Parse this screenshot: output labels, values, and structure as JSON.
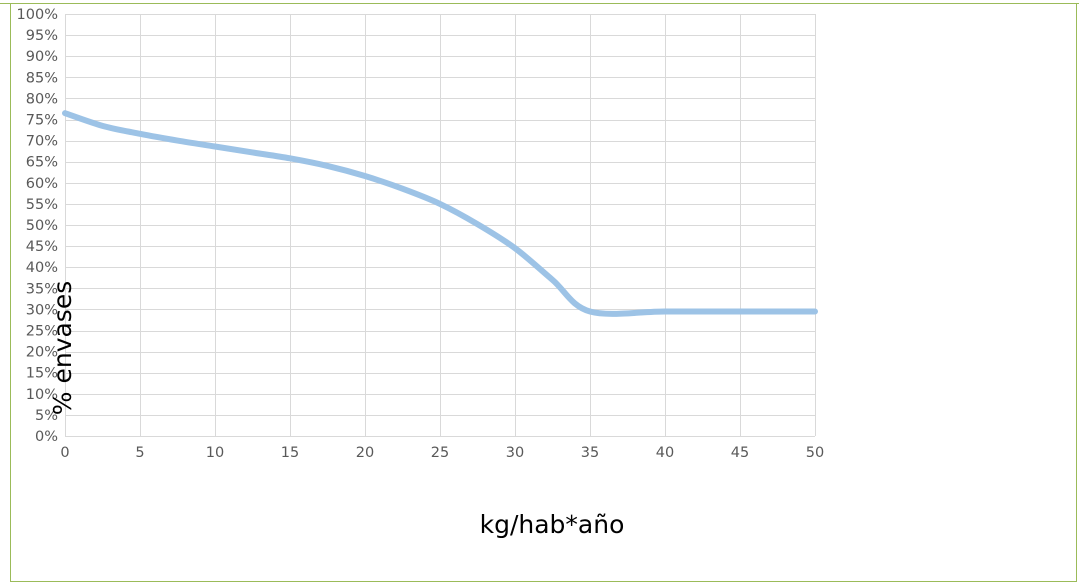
{
  "chart_data": {
    "type": "line",
    "title": "",
    "xlabel": "kg/hab*año",
    "ylabel": "% envases",
    "xlim": [
      0,
      50
    ],
    "ylim": [
      0,
      100
    ],
    "x_ticks": [
      0,
      5,
      10,
      15,
      20,
      25,
      30,
      35,
      40,
      45,
      50
    ],
    "y_ticks": [
      0,
      5,
      10,
      15,
      20,
      25,
      30,
      35,
      40,
      45,
      50,
      55,
      60,
      65,
      70,
      75,
      80,
      85,
      90,
      95,
      100
    ],
    "y_tick_suffix": "%",
    "grid": true,
    "legend": "none",
    "series": [
      {
        "color": "#9dc3e6",
        "x": [
          0,
          2.5,
          5,
          7.5,
          10,
          12.5,
          15,
          17.5,
          20,
          22.5,
          25,
          27.5,
          30,
          32.5,
          35,
          40,
          45,
          50
        ],
        "y": [
          76.5,
          73.5,
          71.6,
          70.0,
          68.6,
          67.2,
          65.8,
          64.0,
          61.6,
          58.6,
          55.0,
          50.2,
          44.5,
          37.0,
          29.5,
          29.5,
          29.5,
          29.5
        ]
      }
    ]
  },
  "colors": {
    "frame_border": "#9bbb59",
    "grid": "#d9d9d9",
    "tick_text": "#595959",
    "axis_title": "#000000"
  }
}
